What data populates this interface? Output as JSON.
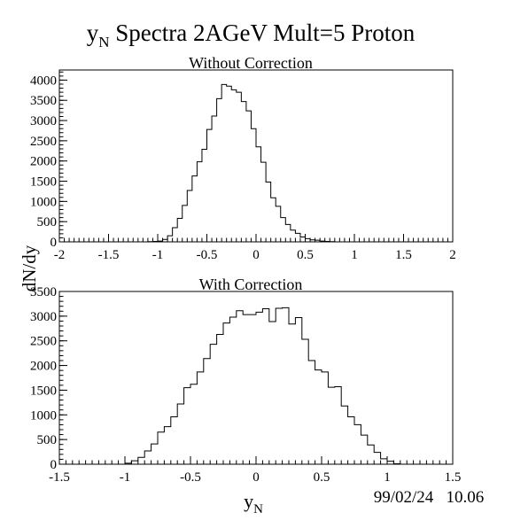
{
  "page": {
    "title_y": "y",
    "title_sub": "N",
    "title_rest": " Spectra 2AGeV Mult=5 Proton",
    "ylabel": "dN/dy",
    "xlabel_y": "y",
    "xlabel_sub": "N",
    "timestamp": "99/02/24   10.06"
  },
  "panels": [
    {
      "title": "Without Correction"
    },
    {
      "title": "With Correction"
    }
  ],
  "chart_data": [
    {
      "type": "histogram",
      "title": "Without Correction",
      "xlabel": "y_N",
      "ylabel": "dN/dy",
      "xlim": [
        -2,
        2
      ],
      "ylim": [
        0,
        4250
      ],
      "x_ticks": [
        -2,
        -1.5,
        -1,
        -0.5,
        0,
        0.5,
        1,
        1.5,
        2
      ],
      "x_tick_labels": [
        "-2",
        "-1.5",
        "-1",
        "-0.5",
        "0",
        "0.5",
        "1",
        "1.5",
        "2"
      ],
      "y_ticks": [
        0,
        500,
        1000,
        1500,
        2000,
        2500,
        3000,
        3500,
        4000
      ],
      "y_tick_labels": [
        "0",
        "500",
        "1000",
        "1500",
        "2000",
        "2500",
        "3000",
        "3500",
        "4000"
      ],
      "bin_edges_start": -1.1,
      "bin_width": 0.05,
      "values": [
        5,
        10,
        20,
        60,
        150,
        350,
        580,
        900,
        1270,
        1630,
        1980,
        2290,
        2780,
        3110,
        3540,
        3890,
        3850,
        3760,
        3700,
        3470,
        3240,
        2800,
        2350,
        1970,
        1480,
        1090,
        880,
        600,
        430,
        290,
        210,
        120,
        80,
        50,
        40,
        20,
        10,
        5
      ],
      "grid": false,
      "legend": "none"
    },
    {
      "type": "histogram",
      "title": "With Correction",
      "xlabel": "y_N",
      "ylabel": "dN/dy",
      "xlim": [
        -1.5,
        1.5
      ],
      "ylim": [
        0,
        3500
      ],
      "x_ticks": [
        -1.5,
        -1,
        -0.5,
        0,
        0.5,
        1,
        1.5
      ],
      "x_tick_labels": [
        "-1.5",
        "-1",
        "-0.5",
        "0",
        "0.5",
        "1",
        "1.5"
      ],
      "y_ticks": [
        0,
        500,
        1000,
        1500,
        2000,
        2500,
        3000,
        3500
      ],
      "y_tick_labels": [
        "0",
        "500",
        "1000",
        "1500",
        "2000",
        "2500",
        "3000",
        "3500"
      ],
      "bin_edges_start": -1.0,
      "bin_width": 0.05,
      "values": [
        20,
        70,
        140,
        270,
        410,
        650,
        760,
        960,
        1220,
        1550,
        1620,
        1870,
        2140,
        2430,
        2630,
        2860,
        2980,
        3110,
        3030,
        3030,
        3080,
        3150,
        2890,
        3160,
        3170,
        2840,
        2970,
        2530,
        2100,
        1910,
        1870,
        1560,
        1570,
        1180,
        960,
        800,
        590,
        390,
        240,
        110,
        60,
        10
      ],
      "grid": false,
      "legend": "none"
    }
  ]
}
